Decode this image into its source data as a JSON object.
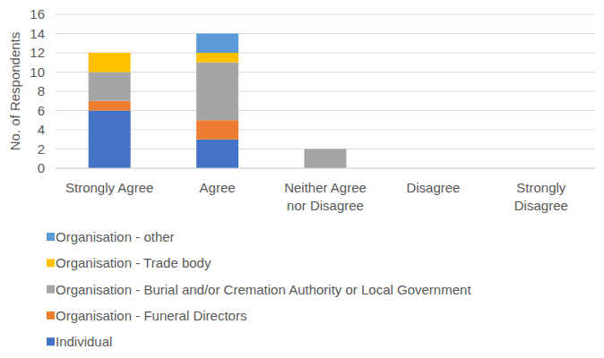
{
  "chart_data": {
    "type": "bar",
    "stacked": true,
    "grid": true,
    "legend": "bottom",
    "y_label": "No. of Respondents",
    "categories": [
      "Strongly Agree",
      "Agree",
      "Neither Agree nor Disagree",
      "Disagree",
      "Strongly Disagree"
    ],
    "ylim": [
      0,
      16
    ],
    "yticks": [
      0,
      2,
      4,
      6,
      8,
      10,
      12,
      14,
      16
    ],
    "series": [
      {
        "name": "Individual",
        "color": "#4472c4",
        "values": [
          6,
          3,
          0,
          0,
          0
        ]
      },
      {
        "name": "Organisation - Funeral Directors",
        "color": "#ed7d31",
        "values": [
          1,
          2,
          0,
          0,
          0
        ]
      },
      {
        "name": "Organisation - Burial and/or Cremation Authority or Local Government",
        "color": "#a5a5a5",
        "values": [
          3,
          6,
          2,
          0,
          0
        ]
      },
      {
        "name": "Organisation - Trade body",
        "color": "#ffc000",
        "values": [
          2,
          1,
          0,
          0,
          0
        ]
      },
      {
        "name": "Organisation - other",
        "color": "#5b9bd5",
        "values": [
          0,
          2,
          0,
          0,
          0
        ]
      }
    ]
  }
}
